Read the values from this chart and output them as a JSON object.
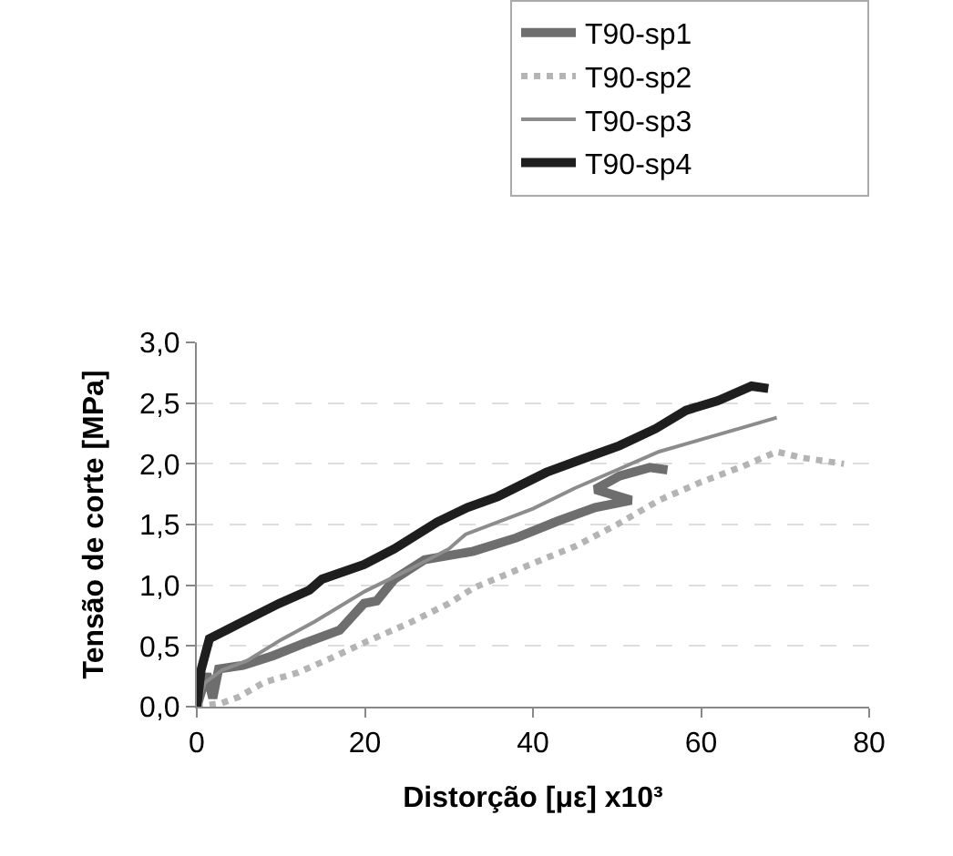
{
  "chart_data": {
    "type": "line",
    "xlabel": "Distorção [με] x10³",
    "ylabel": "Tensão de corte [MPa]",
    "xlim": [
      0,
      80
    ],
    "xticks": [
      0,
      20,
      40,
      60,
      80
    ],
    "ylim": [
      0,
      3
    ],
    "yticks": [
      {
        "value": 0,
        "label": "0,0"
      },
      {
        "value": 0.5,
        "label": "0,5"
      },
      {
        "value": 1,
        "label": "1,0"
      },
      {
        "value": 1.5,
        "label": "1,5"
      },
      {
        "value": 2,
        "label": "2,0"
      },
      {
        "value": 2.5,
        "label": "2,5"
      },
      {
        "value": 3,
        "label": "3,0"
      }
    ],
    "grid": "y",
    "legend": "top",
    "marker": "none",
    "series": [
      {
        "name": "T90-sp1",
        "color": "#6e6e6e",
        "line_style": "solid",
        "x": [
          0,
          1.2,
          1.9,
          2.6,
          5.5,
          9.1,
          12.7,
          17,
          19.9,
          21.4,
          23.5,
          27.1,
          32.9,
          38,
          43,
          47.4,
          51.7,
          47.4,
          50.3,
          53.9,
          56
        ],
        "values": [
          0,
          0.27,
          0.07,
          0.31,
          0.34,
          0.42,
          0.52,
          0.63,
          0.85,
          0.87,
          1.05,
          1.21,
          1.28,
          1.39,
          1.53,
          1.64,
          1.7,
          1.79,
          1.9,
          1.97,
          1.95
        ]
      },
      {
        "name": "T90-sp2",
        "color": "#b4b4b4",
        "line_style": "dotted",
        "x": [
          0,
          3,
          5,
          8,
          12,
          16,
          20,
          25,
          30,
          33,
          40,
          45,
          50,
          55,
          60,
          65,
          69,
          72,
          77
        ],
        "values": [
          0,
          0.03,
          0.08,
          0.2,
          0.28,
          0.4,
          0.53,
          0.68,
          0.85,
          0.98,
          1.18,
          1.32,
          1.5,
          1.7,
          1.85,
          1.98,
          2.1,
          2.05,
          2
        ]
      },
      {
        "name": "T90-sp3",
        "color": "#8c8c8c",
        "line_style": "solid",
        "x": [
          0,
          1,
          3,
          6,
          10,
          14,
          20,
          25,
          30,
          32,
          40,
          45,
          50,
          55,
          60,
          65,
          69
        ],
        "values": [
          0,
          0.2,
          0.3,
          0.38,
          0.55,
          0.7,
          0.95,
          1.12,
          1.3,
          1.42,
          1.63,
          1.8,
          1.95,
          2.1,
          2.2,
          2.3,
          2.38
        ]
      },
      {
        "name": "T90-sp4",
        "color": "#1e1e1e",
        "line_style": "solid",
        "x": [
          0,
          0.5,
          1.5,
          5.5,
          9.8,
          13.4,
          14.9,
          19.9,
          23.5,
          28.6,
          32.2,
          35.8,
          41.6,
          45.9,
          50.3,
          54.6,
          58.2,
          62,
          66,
          68
        ],
        "values": [
          0,
          0.3,
          0.56,
          0.7,
          0.85,
          0.96,
          1.05,
          1.17,
          1.3,
          1.52,
          1.64,
          1.73,
          1.93,
          2.04,
          2.15,
          2.29,
          2.44,
          2.52,
          2.64,
          2.62
        ]
      }
    ]
  }
}
